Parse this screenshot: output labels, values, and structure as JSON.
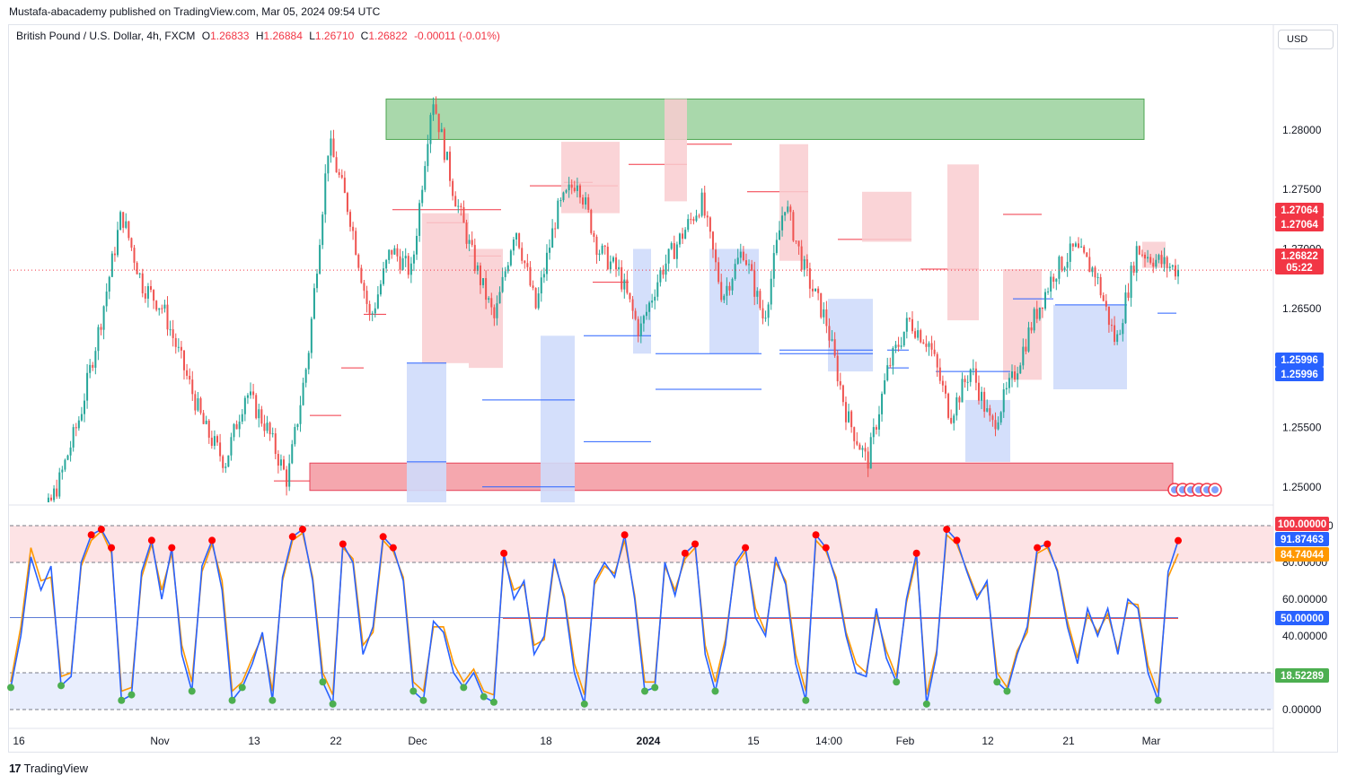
{
  "header": {
    "publisher_line": "Mustafa-abacademy published on TradingView.com, Mar 05, 2024 09:54 UTC",
    "currency_button": "USD"
  },
  "legend": {
    "symbol": "British Pound / U.S. Dollar, 4h, FXCM",
    "open_label": "O",
    "open": "1.26833",
    "high_label": "H",
    "high": "1.26884",
    "low_label": "L",
    "low": "1.26710",
    "close_label": "C",
    "close": "1.26822",
    "change": "-0.00011 (-0.01%)"
  },
  "brand": {
    "logo": "17",
    "name": "TradingView"
  },
  "colors": {
    "up": "#26a69a",
    "down": "#ef5350",
    "resistance_line": "#f23645",
    "support_line": "#2962ff",
    "resistance_fill": "#f9cdd0",
    "support_fill": "#cfdcfb",
    "green_zone": "#a5d6a7",
    "red_zone": "#f5a3aa",
    "stoch_k": "#2962ff",
    "stoch_d": "#ff9800",
    "ob_marker": "#ff0000",
    "os_marker": "#4caf50"
  },
  "chart_data": [
    {
      "type": "candlestick",
      "title": "",
      "xlabel": "",
      "ylabel": "",
      "ylim": [
        1.2487,
        1.2873
      ],
      "y_ticks": [
        "1.28000",
        "1.27500",
        "1.27000",
        "1.26500",
        "1.25500",
        "1.25000"
      ],
      "x_ticks": [
        "16",
        "Nov",
        "13",
        "22",
        "Dec",
        "18",
        "2024",
        "15",
        "14:00",
        "Feb",
        "12",
        "21",
        "Mar"
      ],
      "close_price_line": 1.26822,
      "price_badges": [
        {
          "value": "1.27064",
          "color": "#f23645"
        },
        {
          "value": "1.27064",
          "color": "#f23645"
        },
        {
          "value": "1.26822",
          "color": "#f23645"
        },
        {
          "value": "05:22",
          "color": "#f23645"
        },
        {
          "value": "1.25996",
          "color": "#2962ff"
        },
        {
          "value": "1.25996",
          "color": "#2962ff"
        }
      ],
      "zones": [
        {
          "name": "supply",
          "price_top": 1.2826,
          "price_bottom": 1.2792
        },
        {
          "name": "demand",
          "price_top": 1.252,
          "price_bottom": 1.2497
        }
      ],
      "resistance_levels": [
        1.2505,
        1.256,
        1.26,
        1.2645,
        1.2733,
        1.2722,
        1.2694,
        1.2753,
        1.2756,
        1.2672,
        1.2771,
        1.2788,
        1.2748,
        1.2708,
        1.2683,
        1.2729
      ],
      "support_levels": [
        1.2604,
        1.25,
        1.2627,
        1.2612,
        1.2612,
        1.2615,
        1.2597,
        1.2658,
        1.2653,
        1.2646,
        1.2521,
        1.2573,
        1.2538,
        1.2582,
        1.2615,
        1.26
      ],
      "price_path": [
        1.244,
        1.2462,
        1.2505,
        1.256,
        1.264,
        1.273,
        1.267,
        1.265,
        1.26,
        1.255,
        1.252,
        1.258,
        1.255,
        1.2505,
        1.261,
        1.279,
        1.273,
        1.264,
        1.27,
        1.268,
        1.283,
        1.275,
        1.269,
        1.264,
        1.272,
        1.265,
        1.273,
        1.276,
        1.27,
        1.268,
        1.263,
        1.268,
        1.271,
        1.274,
        1.266,
        1.27,
        1.264,
        1.274,
        1.268,
        1.264,
        1.256,
        1.252,
        1.26,
        1.264,
        1.262,
        1.256,
        1.26,
        1.255,
        1.259,
        1.264,
        1.268,
        1.27,
        1.268,
        1.262,
        1.27,
        1.269,
        1.2682
      ]
    },
    {
      "type": "line",
      "title": "",
      "ylim": [
        0,
        100
      ],
      "y_ticks": [
        "100.00000",
        "80.00000",
        "60.00000",
        "40.00000",
        "0.00000"
      ],
      "bands": {
        "upper": 80,
        "lower": 20,
        "mid": 50
      },
      "value_badges": [
        {
          "value": "100.00000",
          "color": "#f23645"
        },
        {
          "value": "91.87463",
          "color": "#2962ff"
        },
        {
          "value": "84.74044",
          "color": "#ff9800"
        },
        {
          "value": "50.00000",
          "color": "#2962ff"
        },
        {
          "value": "18.52289",
          "color": "#4caf50"
        }
      ],
      "series": [
        {
          "values": [
            12,
            40,
            83,
            65,
            78,
            13,
            18,
            80,
            95,
            98,
            88,
            5,
            8,
            75,
            92,
            60,
            88,
            30,
            10,
            78,
            92,
            65,
            5,
            12,
            25,
            42,
            5,
            72,
            94,
            98,
            70,
            15,
            3,
            90,
            80,
            30,
            45,
            94,
            88,
            70,
            10,
            5,
            48,
            42,
            20,
            12,
            20,
            7,
            4,
            85,
            60,
            70,
            30,
            40,
            82,
            60,
            20,
            3,
            70,
            80,
            72,
            95,
            60,
            10,
            12,
            80,
            62,
            85,
            90,
            30,
            10,
            35,
            80,
            88,
            50,
            40,
            83,
            68,
            25,
            5,
            95,
            88,
            70,
            40,
            20,
            18,
            55,
            28,
            15,
            60,
            85,
            3,
            30,
            98,
            92,
            75,
            60,
            70,
            15,
            10,
            30,
            45,
            88,
            90,
            75,
            45,
            25,
            55,
            40,
            55,
            30,
            60,
            55,
            20,
            5,
            75,
            91.87
          ]
        },
        {
          "values": [
            15,
            45,
            88,
            70,
            72,
            18,
            20,
            78,
            92,
            97,
            85,
            10,
            12,
            72,
            90,
            65,
            85,
            35,
            15,
            75,
            90,
            70,
            10,
            15,
            28,
            40,
            10,
            70,
            92,
            96,
            72,
            20,
            8,
            88,
            82,
            35,
            42,
            92,
            86,
            72,
            15,
            10,
            45,
            45,
            25,
            15,
            22,
            10,
            8,
            82,
            65,
            68,
            35,
            38,
            80,
            62,
            25,
            8,
            68,
            78,
            74,
            92,
            62,
            15,
            15,
            78,
            65,
            82,
            88,
            35,
            15,
            38,
            78,
            86,
            55,
            42,
            80,
            70,
            30,
            10,
            92,
            86,
            72,
            42,
            25,
            20,
            52,
            32,
            18,
            58,
            82,
            8,
            32,
            95,
            90,
            76,
            62,
            68,
            20,
            12,
            32,
            42,
            85,
            88,
            76,
            48,
            28,
            52,
            42,
            52,
            32,
            58,
            57,
            24,
            9,
            72,
            84.74
          ]
        }
      ]
    }
  ]
}
